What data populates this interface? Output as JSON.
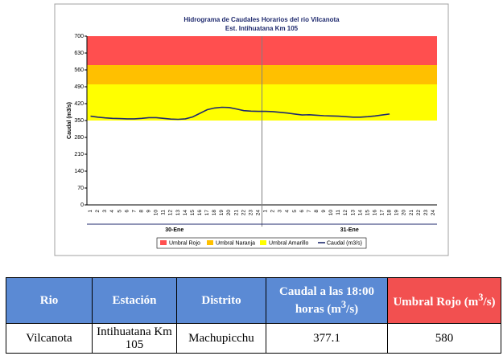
{
  "chart_data": {
    "type": "line",
    "title": "Hidrograma de Caudales Horarios del rio Vilcanota",
    "subtitle": "Est. Intihuatana Km 105",
    "y_label": "Caudal (m3/s)",
    "categories": [
      "1",
      "2",
      "3",
      "4",
      "5",
      "6",
      "7",
      "8",
      "9",
      "10",
      "11",
      "12",
      "13",
      "14",
      "15",
      "16",
      "17",
      "18",
      "19",
      "20",
      "21",
      "22",
      "23",
      "24",
      "1",
      "2",
      "3",
      "4",
      "5",
      "6",
      "7",
      "8",
      "9",
      "10",
      "11",
      "12",
      "13",
      "14",
      "15",
      "16",
      "17",
      "18",
      "19",
      "20",
      "21",
      "22",
      "23",
      "24"
    ],
    "groups": [
      "30-Ene",
      "31-Ene"
    ],
    "bands": [
      {
        "name": "Umbral Rojo",
        "color": "#ff4f4f",
        "from": 580,
        "to": 700
      },
      {
        "name": "Umbral Naranja",
        "color": "#ffc000",
        "from": 500,
        "to": 580
      },
      {
        "name": "Umbral Amarillo",
        "color": "#ffff00",
        "from": 350,
        "to": 500
      }
    ],
    "series": [
      {
        "name": "Caudal (m3/s)",
        "color": "#1f2a6e",
        "values": [
          368,
          364,
          361,
          359,
          358,
          357,
          357,
          359,
          362,
          362,
          359,
          356,
          355,
          357,
          365,
          380,
          395,
          402,
          405,
          404,
          398,
          391,
          389,
          388,
          388,
          387,
          384,
          381,
          377,
          373,
          374,
          372,
          370,
          369,
          368,
          366,
          364,
          364,
          366,
          369,
          373,
          377.1,
          null,
          null,
          null,
          null,
          null,
          null
        ]
      }
    ],
    "ylim": [
      0,
      700
    ],
    "yticks": [
      0,
      70,
      140,
      210,
      280,
      350,
      420,
      490,
      560,
      630,
      700
    ],
    "legend": "bottom"
  },
  "table": {
    "header": [
      "Rio",
      "Estación",
      "Distrito",
      {
        "text": "Caudal a las 18:00 horas (m",
        "sup": "3",
        "tail": "/s)"
      },
      {
        "text": "Umbral Rojo (m",
        "sup": "3",
        "tail": "/s)"
      }
    ],
    "rows": [
      [
        "Vilcanota",
        "Intihuatana Km 105",
        "Machupicchu",
        "377.1",
        "580"
      ]
    ]
  }
}
